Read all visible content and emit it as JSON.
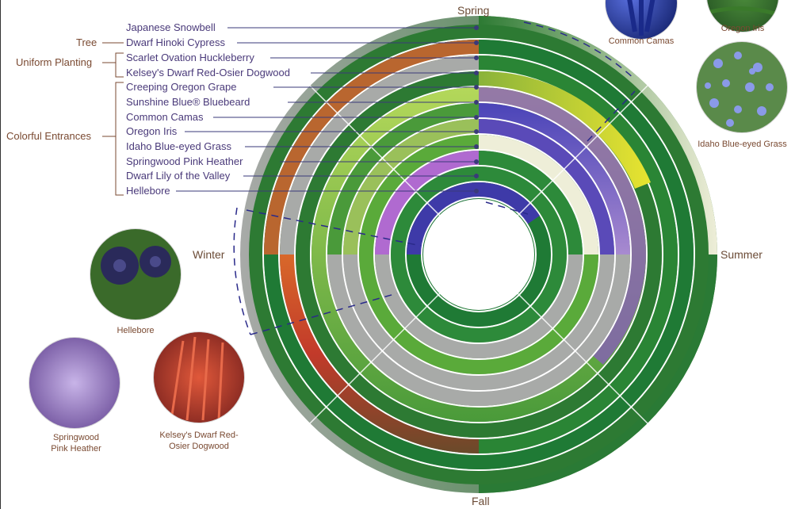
{
  "seasons": {
    "spring": "Spring",
    "summer": "Summer",
    "fall": "Fall",
    "winter": "Winter"
  },
  "groups": {
    "tree": "Tree",
    "uniform": "Uniform Planting",
    "colorful": "Colorful Entrances"
  },
  "plants": [
    {
      "label": "Japanese Snowbell",
      "color": "#1e6e2e"
    },
    {
      "label": "Dwarf Hinoki Cypress",
      "color": "#2d7a33"
    },
    {
      "label": "Scarlet Ovation Huckleberry",
      "color": "#c8502a"
    },
    {
      "label": "Kelsey's Dwarf Red-Osier Dogwood",
      "color": "#b73a2a"
    },
    {
      "label": "Creeping Oregon Grape",
      "color": "#e2e030"
    },
    {
      "label": "Sunshine Blue® Bluebeard",
      "color": "#9bcd4a"
    },
    {
      "label": "Common Camas",
      "color": "#4a44a8"
    },
    {
      "label": "Oregon Iris",
      "color": "#7a5ac0"
    },
    {
      "label": "Idaho Blue-eyed Grass",
      "color": "#3a54b0"
    },
    {
      "label": "Springwood Pink Heather",
      "color": "#b06ad0"
    },
    {
      "label": "Dwarf Lily of the Valley",
      "color": "#f3f2e2"
    },
    {
      "label": "Hellebore",
      "color": "#3e3aa8"
    }
  ],
  "photos": {
    "common_camas": "Common Camas",
    "oregon_iris": "Oregon Iris",
    "idaho": "Idaho Blue-eyed Grass",
    "hellebore": "Hellebore",
    "heather_1": "Springwood",
    "heather_2": "Pink Heather",
    "dogwood_1": "Kelsey's Dwarf Red-",
    "dogwood_2": "Osier Dogwood"
  },
  "colors": {
    "foliage": "#1f7a35",
    "dormant": "#a8aaa8",
    "label_line": "#3a3a7a",
    "brand_text": "#7a4a32"
  }
}
